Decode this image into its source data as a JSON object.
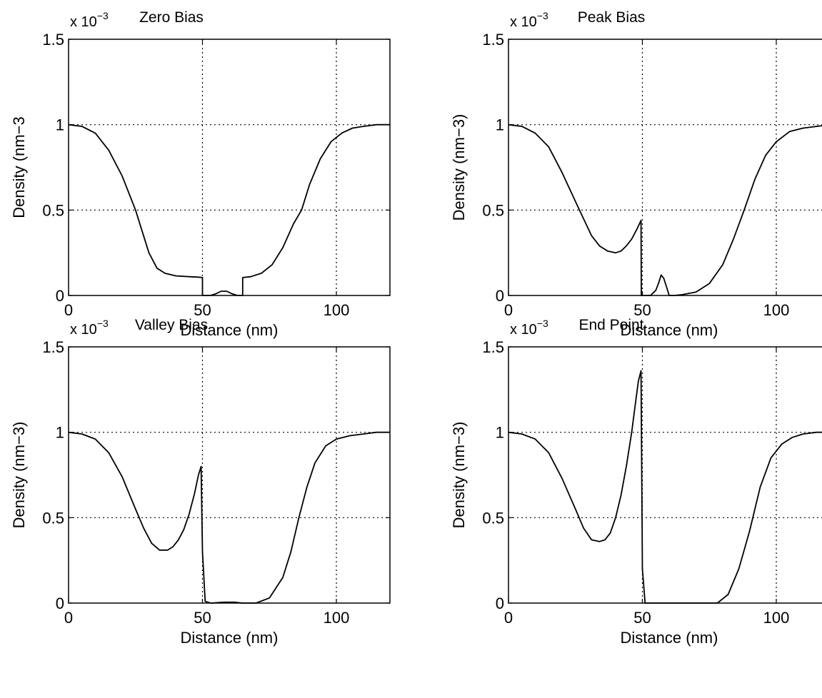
{
  "chart_data": [
    {
      "type": "line",
      "title": "Zero Bias",
      "xlabel": "Distance (nm)",
      "ylabel": "Density (nm−3",
      "scale_multiplier": "x 10",
      "scale_exponent": "−3",
      "xlim": [
        0,
        120
      ],
      "ylim": [
        0,
        1.5
      ],
      "xticks": [
        0,
        50,
        100
      ],
      "xtick_labels": [
        "0",
        "50",
        "100"
      ],
      "yticks": [
        0,
        0.5,
        1,
        1.5
      ],
      "ytick_labels": [
        "0",
        "0.5",
        "1",
        "1.5"
      ],
      "grid": true,
      "units_note": "values in units of 10^-3 nm^-3",
      "series": [
        {
          "x": [
            0,
            5,
            10,
            15,
            20,
            25,
            28,
            30,
            33,
            36,
            40,
            45,
            48,
            50,
            50,
            53,
            55,
            57,
            59,
            61,
            63,
            65,
            65,
            68,
            72,
            76,
            80,
            84,
            87,
            90,
            94,
            98,
            102,
            106,
            110,
            115,
            120
          ],
          "y": [
            1.0,
            0.99,
            0.95,
            0.85,
            0.7,
            0.5,
            0.35,
            0.25,
            0.16,
            0.13,
            0.115,
            0.11,
            0.108,
            0.105,
            0.0,
            0.0,
            0.01,
            0.025,
            0.025,
            0.01,
            0.0,
            0.0,
            0.105,
            0.11,
            0.13,
            0.18,
            0.28,
            0.42,
            0.5,
            0.65,
            0.8,
            0.9,
            0.95,
            0.98,
            0.99,
            1.0,
            1.0
          ]
        }
      ]
    },
    {
      "type": "line",
      "title": "Peak Bias",
      "xlabel": "Distance (nm)",
      "ylabel": "Density (nm−3)",
      "scale_multiplier": "x 10",
      "scale_exponent": "−3",
      "xlim": [
        0,
        120
      ],
      "ylim": [
        0,
        1.5
      ],
      "xticks": [
        0,
        50,
        100
      ],
      "xtick_labels": [
        "0",
        "50",
        "100"
      ],
      "yticks": [
        0,
        0.5,
        1,
        1.5
      ],
      "ytick_labels": [
        "0",
        "0.5",
        "1",
        "1.5"
      ],
      "grid": true,
      "units_note": "values in units of 10^-3 nm^-3",
      "series": [
        {
          "x": [
            0,
            5,
            10,
            15,
            20,
            25,
            28,
            31,
            34,
            37,
            40,
            42,
            44,
            46,
            48,
            49.5,
            49.6,
            50,
            51,
            53,
            55,
            56,
            57,
            58,
            59,
            60,
            62,
            65,
            70,
            75,
            80,
            84,
            88,
            92,
            96,
            100,
            105,
            110,
            115,
            120
          ],
          "y": [
            1.0,
            0.99,
            0.95,
            0.87,
            0.72,
            0.55,
            0.45,
            0.35,
            0.29,
            0.26,
            0.25,
            0.26,
            0.29,
            0.33,
            0.39,
            0.44,
            0.0,
            0.0,
            0.0,
            0.0,
            0.03,
            0.07,
            0.12,
            0.1,
            0.05,
            0.0,
            0.0,
            0.005,
            0.02,
            0.07,
            0.18,
            0.33,
            0.5,
            0.68,
            0.82,
            0.9,
            0.96,
            0.98,
            0.99,
            1.0
          ]
        }
      ]
    },
    {
      "type": "line",
      "title": "Valley Bias",
      "xlabel": "Distance (nm)",
      "ylabel": "Density (nm−3)",
      "scale_multiplier": "x 10",
      "scale_exponent": "−3",
      "xlim": [
        0,
        120
      ],
      "ylim": [
        0,
        1.5
      ],
      "xticks": [
        0,
        50,
        100
      ],
      "xtick_labels": [
        "0",
        "50",
        "100"
      ],
      "yticks": [
        0,
        0.5,
        1,
        1.5
      ],
      "ytick_labels": [
        "0",
        "0.5",
        "1",
        "1.5"
      ],
      "grid": true,
      "units_note": "values in units of 10^-3 nm^-3",
      "series": [
        {
          "x": [
            0,
            5,
            10,
            15,
            20,
            25,
            28,
            31,
            34,
            37,
            39,
            41,
            43,
            45,
            47,
            48.5,
            49.5,
            50,
            51,
            53,
            58,
            62,
            65,
            70,
            75,
            80,
            83,
            86,
            89,
            92,
            96,
            100,
            105,
            110,
            115,
            120
          ],
          "y": [
            1.0,
            0.99,
            0.96,
            0.88,
            0.74,
            0.55,
            0.44,
            0.35,
            0.31,
            0.31,
            0.33,
            0.37,
            0.43,
            0.52,
            0.64,
            0.75,
            0.8,
            0.3,
            0.01,
            0.0,
            0.005,
            0.005,
            0.0,
            0.0,
            0.03,
            0.15,
            0.3,
            0.5,
            0.68,
            0.82,
            0.92,
            0.96,
            0.98,
            0.99,
            1.0,
            1.0
          ]
        }
      ]
    },
    {
      "type": "line",
      "title": "End Point",
      "xlabel": "Distance (nm)",
      "ylabel": "Density (nm−3)",
      "scale_multiplier": "x 10",
      "scale_exponent": "−3",
      "xlim": [
        0,
        120
      ],
      "ylim": [
        0,
        1.5
      ],
      "xticks": [
        0,
        50,
        100
      ],
      "xtick_labels": [
        "0",
        "50",
        "100"
      ],
      "yticks": [
        0,
        0.5,
        1,
        1.5
      ],
      "ytick_labels": [
        "0",
        "0.5",
        "1",
        "1.5"
      ],
      "grid": true,
      "units_note": "values in units of 10^-3 nm^-3",
      "series": [
        {
          "x": [
            0,
            5,
            10,
            15,
            20,
            25,
            28,
            31,
            34,
            36,
            38,
            40,
            42,
            44,
            46,
            47.5,
            48.5,
            49.5,
            50,
            51,
            53,
            60,
            70,
            78,
            82,
            86,
            90,
            94,
            98,
            102,
            106,
            110,
            115,
            120
          ],
          "y": [
            1.0,
            0.99,
            0.96,
            0.88,
            0.73,
            0.55,
            0.44,
            0.37,
            0.36,
            0.37,
            0.41,
            0.5,
            0.63,
            0.8,
            1.0,
            1.18,
            1.3,
            1.36,
            0.2,
            0.0,
            0.0,
            0.0,
            0.0,
            0.0,
            0.05,
            0.2,
            0.42,
            0.68,
            0.85,
            0.93,
            0.97,
            0.99,
            1.0,
            1.0
          ]
        }
      ]
    }
  ]
}
